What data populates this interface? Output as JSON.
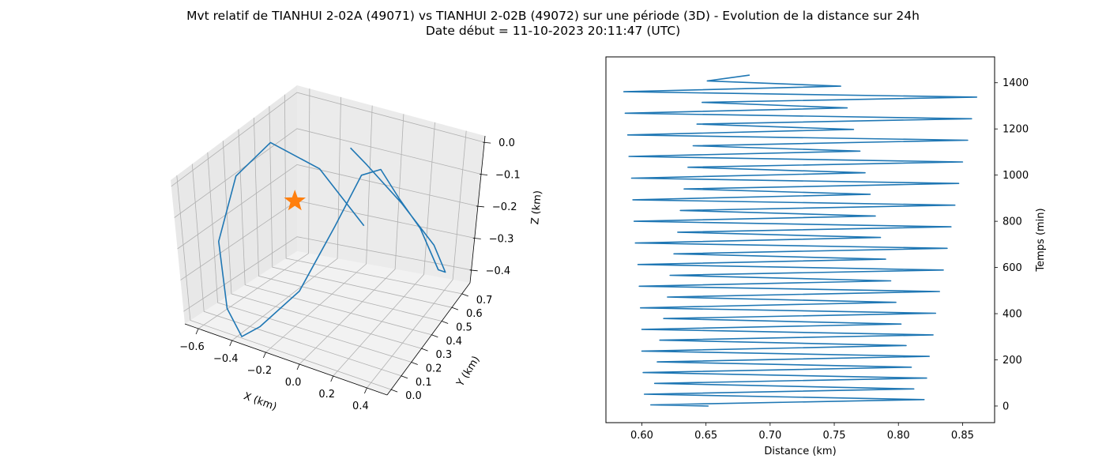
{
  "figure": {
    "title_line1": "Mvt relatif de TIANHUI 2-02A (49071) vs TIANHUI 2-02B (49072) sur une période (3D) - Evolution de la distance sur 24h",
    "title_line2": "Date début = 11-10-2023 20:11:47 (UTC)"
  },
  "colors": {
    "series": "#1f77b4",
    "marker": "#ff7f0e",
    "pane": "#f2f2f2",
    "grid": "#b0b0b0"
  },
  "chart_data": [
    {
      "type": "line3d",
      "xlabel": "X (km)",
      "ylabel": "Y (km)",
      "zlabel": "Z (km)",
      "xlim": [
        -0.68,
        0.52
      ],
      "ylim": [
        -0.04,
        0.78
      ],
      "zlim": [
        -0.44,
        0.02
      ],
      "x_ticks": [
        -0.6,
        -0.4,
        -0.2,
        0.0,
        0.2,
        0.4
      ],
      "x_tick_labels": [
        "−0.6",
        "−0.4",
        "−0.2",
        "0.0",
        "0.2",
        "0.4"
      ],
      "y_ticks": [
        0.0,
        0.1,
        0.2,
        0.3,
        0.4,
        0.5,
        0.6,
        0.7
      ],
      "y_tick_labels": [
        "0.0",
        "0.1",
        "0.2",
        "0.3",
        "0.4",
        "0.5",
        "0.6",
        "0.7"
      ],
      "z_ticks": [
        0.0,
        -0.1,
        -0.2,
        -0.3,
        -0.4
      ],
      "z_tick_labels": [
        "0.0",
        "−0.1",
        "−0.2",
        "−0.3",
        "−0.4"
      ],
      "grid": true,
      "marker": {
        "symbol": "star",
        "x": 0.0,
        "y": 0.0,
        "z": 0.0
      },
      "path": [
        {
          "x": -0.2,
          "y": 0.75,
          "z": -0.32
        },
        {
          "x": -0.42,
          "y": 0.66,
          "z": -0.15
        },
        {
          "x": -0.6,
          "y": 0.52,
          "z": -0.05
        },
        {
          "x": -0.66,
          "y": 0.35,
          "z": -0.1
        },
        {
          "x": -0.63,
          "y": 0.18,
          "z": -0.24
        },
        {
          "x": -0.5,
          "y": 0.06,
          "z": -0.39
        },
        {
          "x": -0.38,
          "y": 0.01,
          "z": -0.44
        },
        {
          "x": -0.28,
          "y": 0.03,
          "z": -0.4
        },
        {
          "x": -0.1,
          "y": 0.12,
          "z": -0.3
        },
        {
          "x": 0.05,
          "y": 0.22,
          "z": -0.13
        },
        {
          "x": 0.15,
          "y": 0.3,
          "z": 0.0
        },
        {
          "x": 0.25,
          "y": 0.32,
          "z": 0.02
        },
        {
          "x": 0.3,
          "y": 0.4,
          "z": -0.08
        },
        {
          "x": 0.36,
          "y": 0.5,
          "z": -0.19
        },
        {
          "x": 0.43,
          "y": 0.58,
          "z": -0.33
        },
        {
          "x": 0.45,
          "y": 0.62,
          "z": -0.35
        },
        {
          "x": 0.38,
          "y": 0.6,
          "z": -0.27
        },
        {
          "x": 0.2,
          "y": 0.55,
          "z": -0.15
        },
        {
          "x": 0.0,
          "y": 0.52,
          "z": -0.05
        },
        {
          "x": -0.12,
          "y": 0.54,
          "z": -0.02
        }
      ]
    },
    {
      "type": "line",
      "xlabel": "Distance (km)",
      "ylabel": "Temps (min)",
      "xlim": [
        0.572,
        0.875
      ],
      "ylim": [
        -72,
        1512
      ],
      "x_ticks": [
        0.6,
        0.65,
        0.7,
        0.75,
        0.8,
        0.85
      ],
      "x_tick_labels": [
        "0.60",
        "0.65",
        "0.70",
        "0.75",
        "0.80",
        "0.85"
      ],
      "y_ticks": [
        0,
        200,
        400,
        600,
        800,
        1000,
        1200,
        1400
      ],
      "y_tick_labels": [
        "0",
        "200",
        "400",
        "600",
        "800",
        "1000",
        "1200",
        "1400"
      ],
      "grid": false,
      "x": [
        0.652,
        0.607,
        0.82,
        0.602,
        0.812,
        0.61,
        0.822,
        0.601,
        0.81,
        0.612,
        0.824,
        0.6,
        0.806,
        0.614,
        0.827,
        0.6,
        0.802,
        0.617,
        0.829,
        0.599,
        0.798,
        0.62,
        0.832,
        0.598,
        0.794,
        0.622,
        0.835,
        0.597,
        0.79,
        0.625,
        0.838,
        0.595,
        0.786,
        0.628,
        0.841,
        0.594,
        0.782,
        0.63,
        0.844,
        0.593,
        0.778,
        0.633,
        0.847,
        0.592,
        0.774,
        0.636,
        0.85,
        0.59,
        0.77,
        0.64,
        0.854,
        0.589,
        0.765,
        0.643,
        0.857,
        0.587,
        0.76,
        0.647,
        0.861,
        0.586,
        0.755,
        0.651,
        0.684
      ],
      "y": [
        0,
        5,
        28,
        51,
        74,
        98,
        121,
        145,
        168,
        191,
        215,
        238,
        262,
        285,
        308,
        332,
        355,
        379,
        402,
        425,
        449,
        472,
        496,
        519,
        542,
        566,
        589,
        613,
        636,
        659,
        683,
        706,
        730,
        753,
        776,
        800,
        823,
        847,
        870,
        893,
        917,
        940,
        964,
        987,
        1010,
        1034,
        1057,
        1081,
        1104,
        1127,
        1151,
        1174,
        1198,
        1221,
        1244,
        1268,
        1291,
        1315,
        1338,
        1361,
        1385,
        1408,
        1433
      ]
    }
  ]
}
